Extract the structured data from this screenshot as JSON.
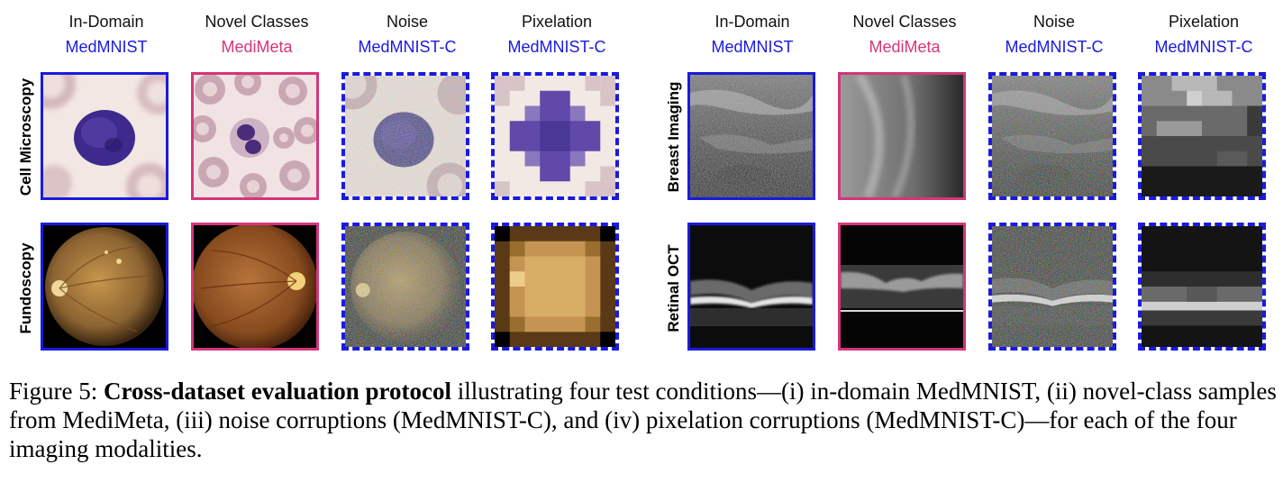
{
  "left_panel": {
    "columns": [
      {
        "condition": "In-Domain",
        "source": "MedMNIST"
      },
      {
        "condition": "Novel Classes",
        "source": "MediMeta"
      },
      {
        "condition": "Noise",
        "source": "MedMNIST-C"
      },
      {
        "condition": "Pixelation",
        "source": "MedMNIST-C"
      }
    ],
    "rows": [
      "Cell Microscopy",
      "Fundoscopy"
    ]
  },
  "right_panel": {
    "columns": [
      {
        "condition": "In-Domain",
        "source": "MedMNIST"
      },
      {
        "condition": "Novel Classes",
        "source": "MediMeta"
      },
      {
        "condition": "Noise",
        "source": "MedMNIST-C"
      },
      {
        "condition": "Pixelation",
        "source": "MedMNIST-C"
      }
    ],
    "rows": [
      "Breast Imaging",
      "Retinal OCT"
    ]
  },
  "colors": {
    "medmnist": "#1a1adf",
    "medimeta": "#d6357a"
  },
  "caption": {
    "label": "Figure 5:",
    "bold": "Cross-dataset evaluation protocol",
    "text": "illustrating four test conditions—(i) in-domain MedMNIST, (ii) novel-class samples from MediMeta, (iii) noise corruptions (MedMNIST-C), and (iv) pixelation corruptions (MedMNIST-C)—for each of the four imaging modalities."
  }
}
